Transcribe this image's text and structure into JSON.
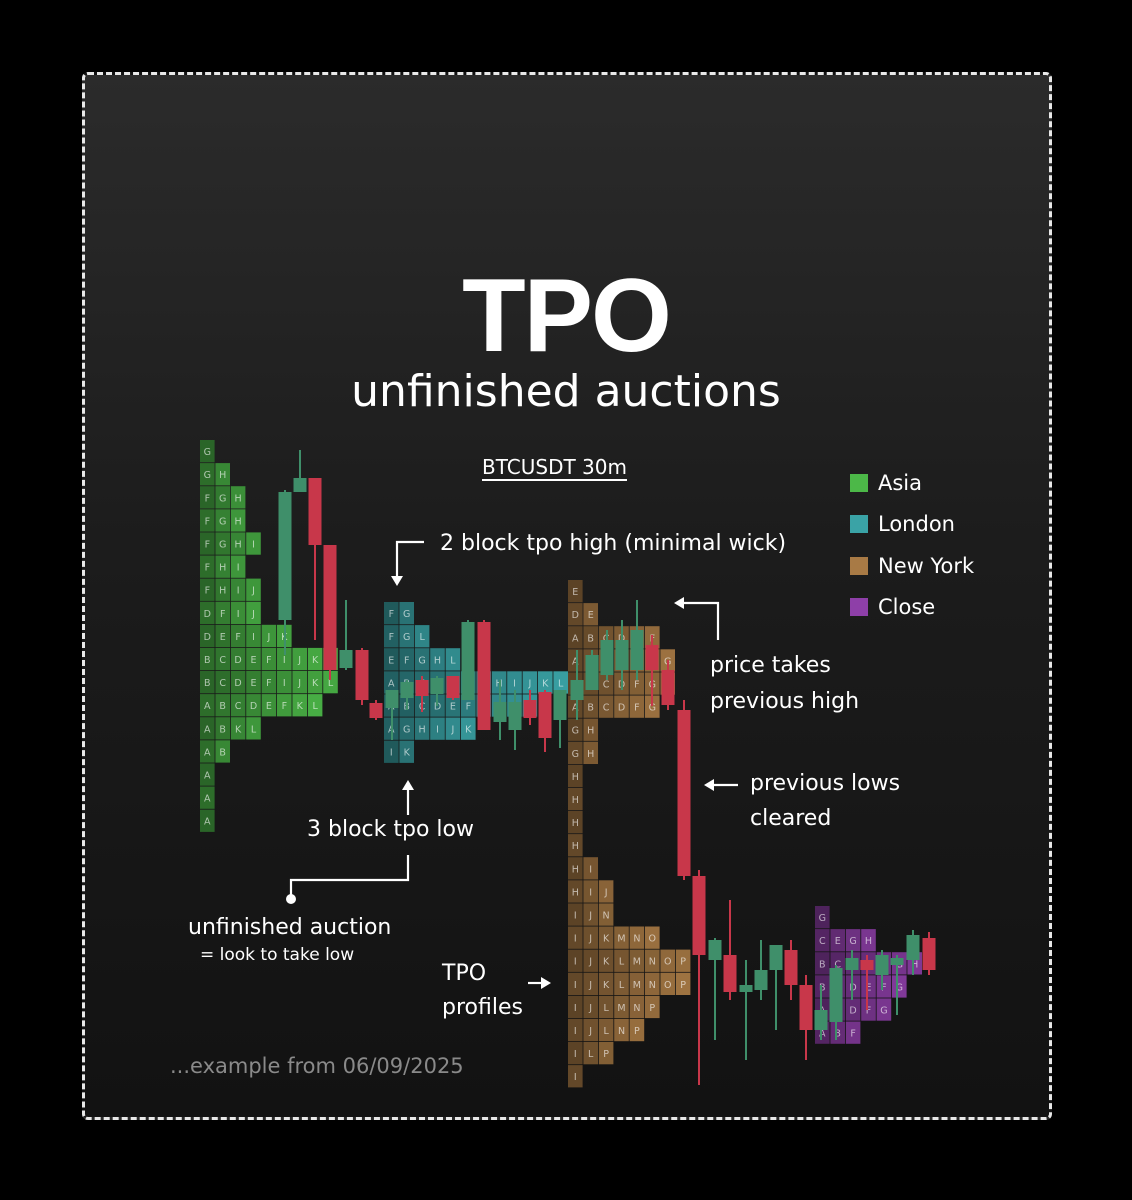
{
  "title": "TPO",
  "subtitle": "unfinished auctions",
  "ticker": "BTCUSDT 30m",
  "legend": [
    {
      "label": "Asia",
      "color": "#4cb848"
    },
    {
      "label": "London",
      "color": "#3aa3a6"
    },
    {
      "label": "New York",
      "color": "#a87a45"
    },
    {
      "label": "Close",
      "color": "#8e3fa8"
    }
  ],
  "annotations": {
    "two_block": "2 block tpo high (minimal wick)",
    "price_takes_1": "price takes",
    "price_takes_2": "previous high",
    "prev_lows_1": "previous lows",
    "prev_lows_2": "cleared",
    "three_block": "3 block tpo low",
    "unfinished_1": "unfinished auction",
    "unfinished_2": "= look to take low",
    "tpo_profiles_1": "TPO",
    "tpo_profiles_2": "profiles"
  },
  "footer": "...example from 06/09/2025",
  "chart_data": {
    "type": "tpo-candlestick",
    "symbol": "BTCUSDT",
    "timeframe": "30m",
    "colors": {
      "up": "#3f8f6a",
      "down": "#c8374a",
      "Asia": "#4cb848",
      "London": "#3aa3a6",
      "New York": "#a87a45",
      "Close": "#8e3fa8"
    },
    "profiles": [
      {
        "session": "Asia",
        "rows": [
          [
            "G"
          ],
          [
            "G",
            "H"
          ],
          [
            "F",
            "G",
            "H"
          ],
          [
            "F",
            "G",
            "H"
          ],
          [
            "F",
            "G",
            "H",
            "I"
          ],
          [
            "F",
            "H",
            "I"
          ],
          [
            "F",
            "H",
            "I",
            "J"
          ],
          [
            "D",
            "F",
            "I",
            "J"
          ],
          [
            "D",
            "E",
            "F",
            "I",
            "J",
            "K"
          ],
          [
            "B",
            "C",
            "D",
            "E",
            "F",
            "I",
            "J",
            "K",
            "L"
          ],
          [
            "B",
            "C",
            "D",
            "E",
            "F",
            "I",
            "J",
            "K",
            "L"
          ],
          [
            "A",
            "B",
            "C",
            "D",
            "E",
            "F",
            "K",
            "L"
          ],
          [
            "A",
            "B",
            "K",
            "L"
          ],
          [
            "A",
            "B"
          ],
          [
            "A"
          ],
          [
            "A"
          ],
          [
            "A"
          ]
        ]
      },
      {
        "session": "London",
        "rows": [
          [
            "F",
            "G"
          ],
          [
            "F",
            "G",
            "L"
          ],
          [
            "E",
            "F",
            "G",
            "H",
            "L"
          ],
          [
            "A",
            "B",
            "C",
            "D",
            "E",
            "F",
            "G",
            "H",
            "I",
            "J",
            "K",
            "L"
          ],
          [
            "A",
            "B",
            "C",
            "D",
            "E",
            "F",
            "G",
            "H",
            "I",
            "J"
          ],
          [
            "A",
            "G",
            "H",
            "I",
            "J",
            "K"
          ],
          [
            "I",
            "K"
          ]
        ]
      },
      {
        "session": "New York",
        "rows": [
          [
            "E"
          ],
          [
            "D",
            "E"
          ],
          [
            "A",
            "B",
            "C",
            "D",
            "E",
            "F"
          ],
          [
            "A",
            "B",
            "C",
            "D",
            "E",
            "F",
            "G"
          ],
          [
            "A",
            "B",
            "C",
            "D",
            "F",
            "G",
            "H"
          ],
          [
            "A",
            "B",
            "C",
            "D",
            "F",
            "G"
          ],
          [
            "G",
            "H"
          ],
          [
            "G",
            "H"
          ],
          [
            "H"
          ],
          [
            "H"
          ],
          [
            "H"
          ],
          [
            "H"
          ],
          [
            "H",
            "I"
          ],
          [
            "H",
            "I",
            "J"
          ],
          [
            "I",
            "J",
            "N"
          ],
          [
            "I",
            "J",
            "K",
            "M",
            "N",
            "O"
          ],
          [
            "I",
            "J",
            "K",
            "L",
            "M",
            "N",
            "O",
            "P"
          ],
          [
            "I",
            "J",
            "K",
            "L",
            "M",
            "N",
            "O",
            "P"
          ],
          [
            "I",
            "J",
            "L",
            "M",
            "N",
            "P"
          ],
          [
            "I",
            "J",
            "L",
            "N",
            "P"
          ],
          [
            "I",
            "L",
            "P"
          ],
          [
            "I"
          ]
        ]
      },
      {
        "session": "Close",
        "rows": [
          [
            "G"
          ],
          [
            "C",
            "E",
            "G",
            "H"
          ],
          [
            "B",
            "C",
            "D",
            "E",
            "F",
            "G",
            "H"
          ],
          [
            "B",
            "C",
            "D",
            "E",
            "F",
            "G"
          ],
          [
            "A",
            "B",
            "D",
            "F",
            "G"
          ],
          [
            "A",
            "B",
            "F"
          ]
        ]
      }
    ]
  }
}
